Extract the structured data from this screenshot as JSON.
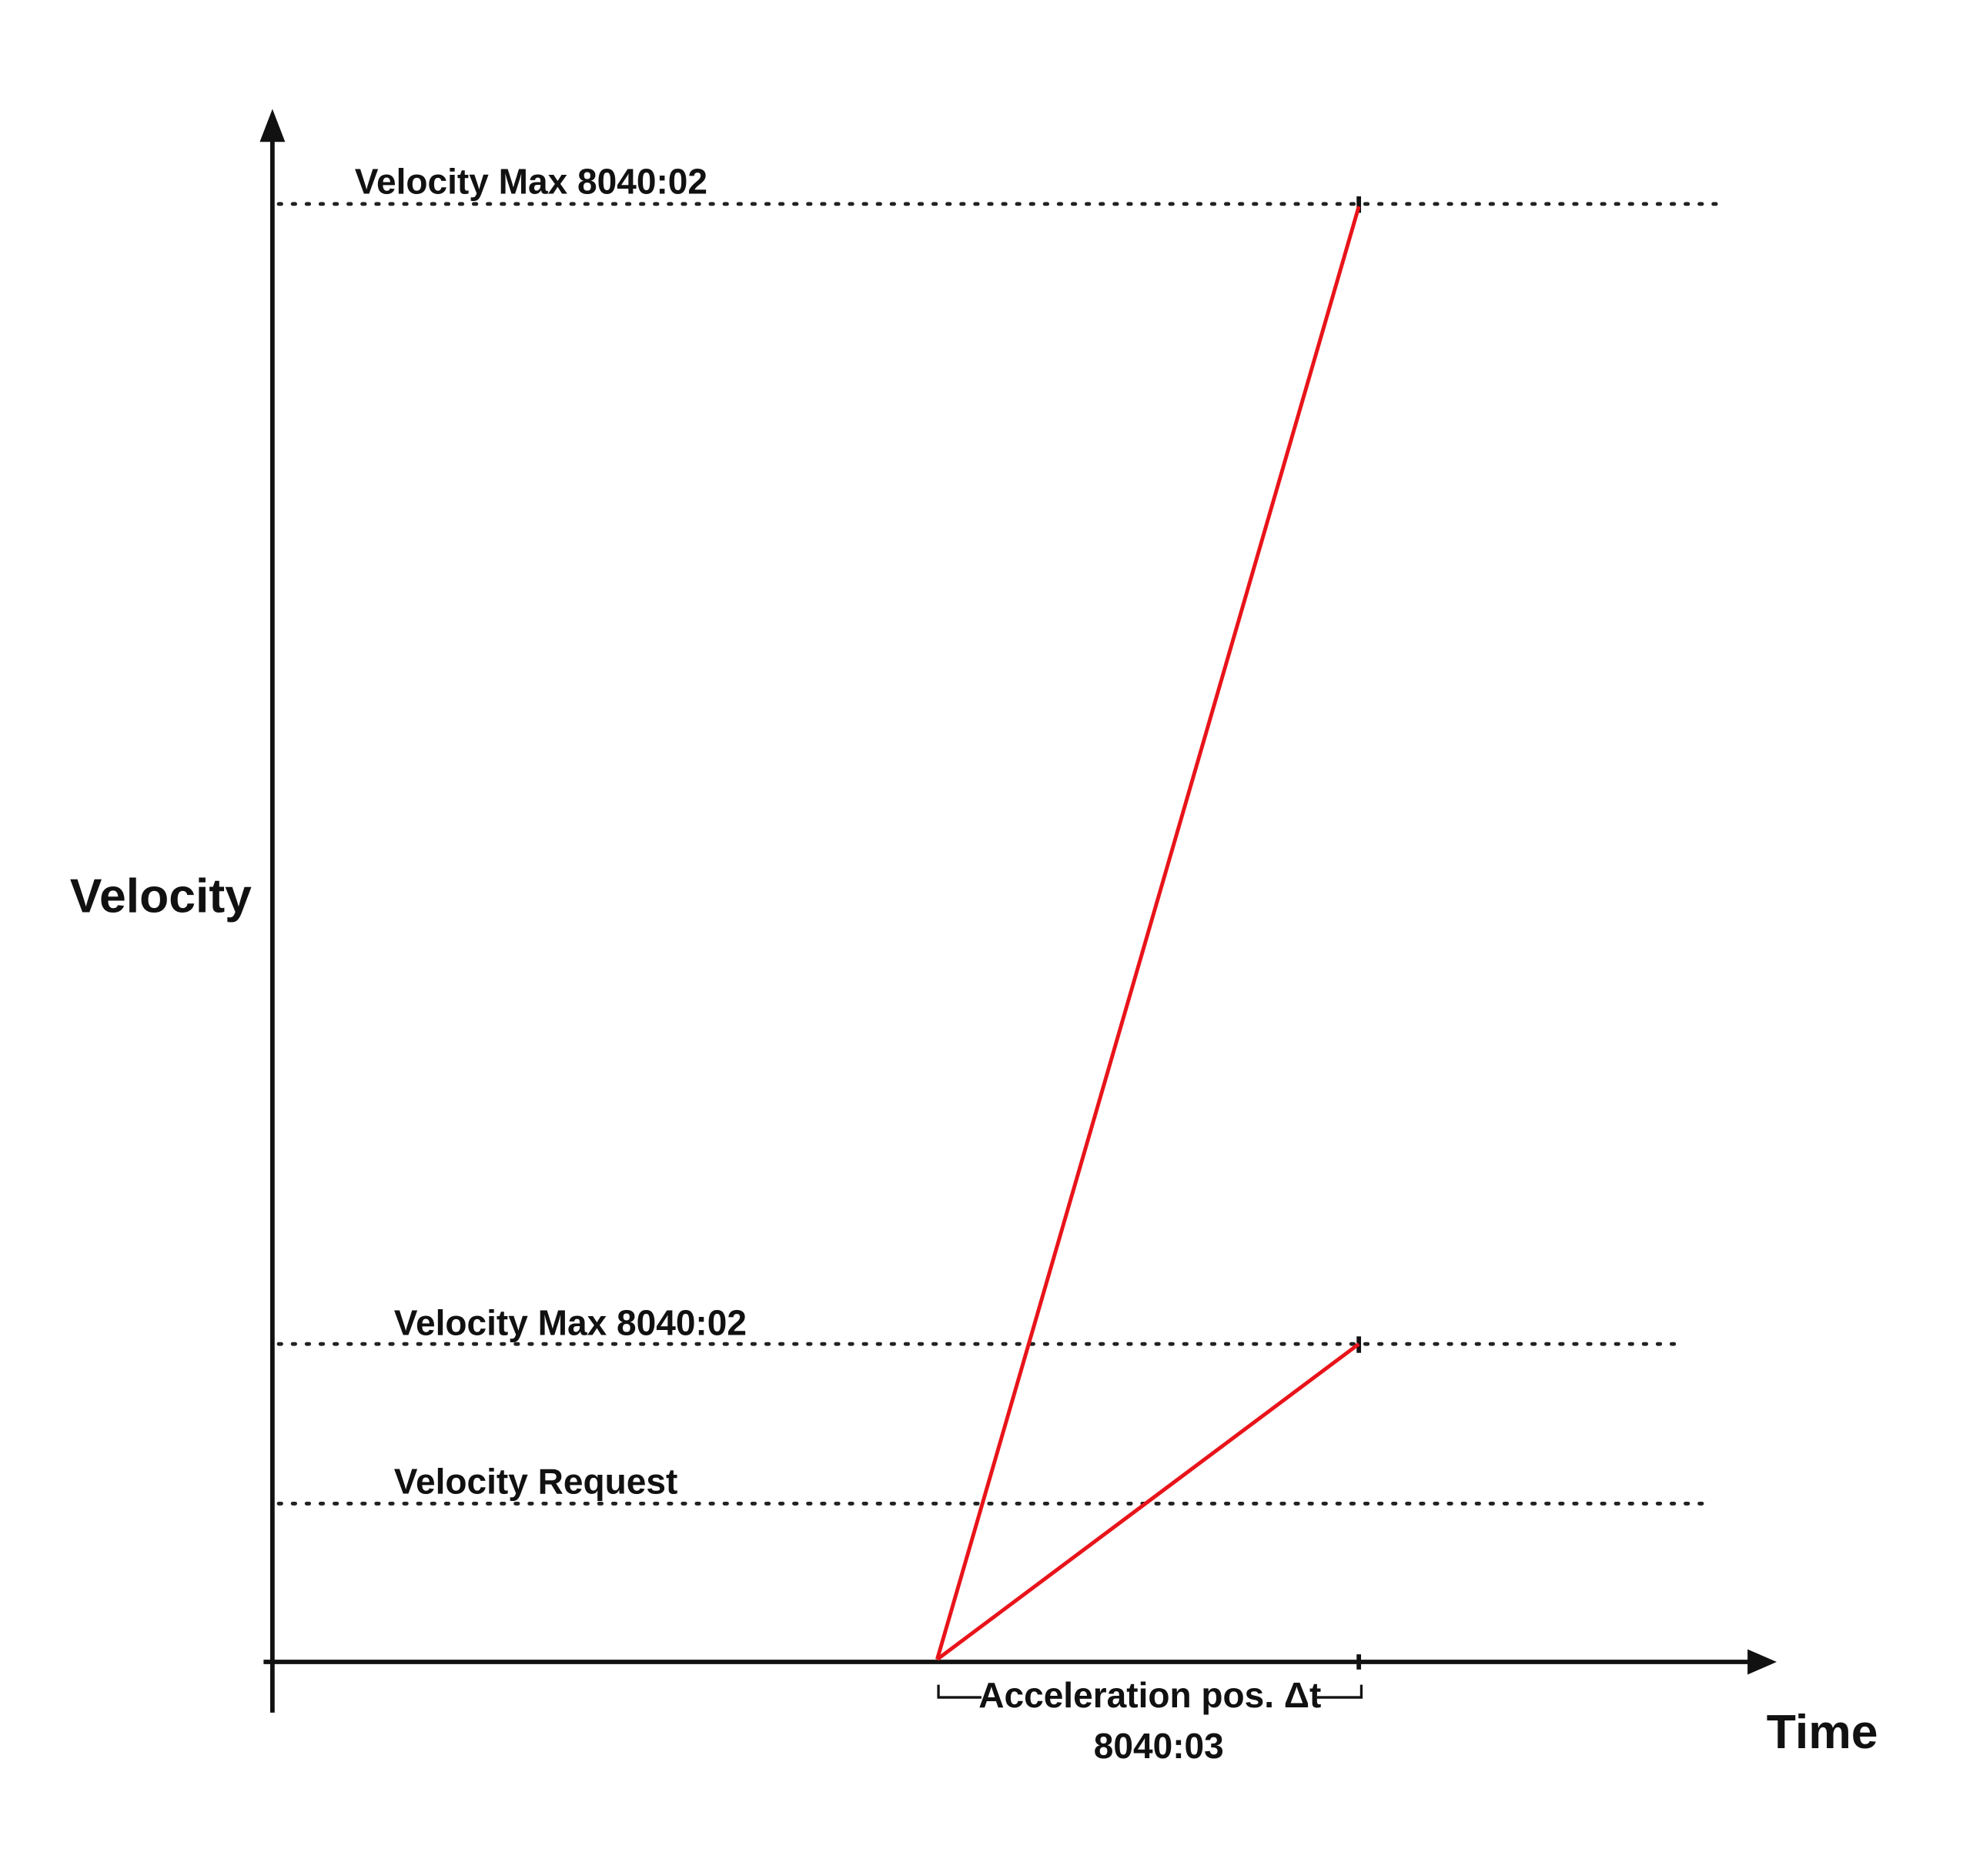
{
  "y_axis_label": "Velocity",
  "x_axis_label": "Time",
  "levels": [
    {
      "label": "Velocity Max 8040:02"
    },
    {
      "label": "Velocity Max 8040:02"
    },
    {
      "label": "Velocity Request"
    }
  ],
  "interval": {
    "label": "Acceleration pos. Δt",
    "object": "8040:03"
  }
}
